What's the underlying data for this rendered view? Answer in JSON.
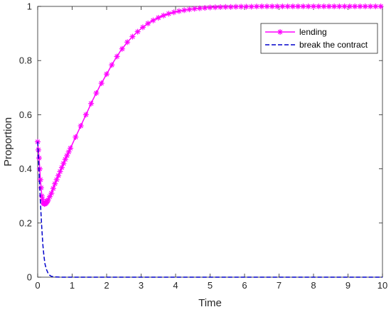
{
  "chart_data": {
    "type": "line",
    "title": "",
    "xlabel": "Time",
    "ylabel": "Proportion",
    "xlim": [
      0,
      10
    ],
    "ylim": [
      0,
      1
    ],
    "xticks": [
      "0",
      "1",
      "2",
      "3",
      "4",
      "5",
      "6",
      "7",
      "8",
      "9",
      "10"
    ],
    "yticks": [
      "0",
      "0.2",
      "0.4",
      "0.6",
      "0.8",
      "1"
    ],
    "grid": false,
    "legend_position": "top-right",
    "series": [
      {
        "name": "lending",
        "color": "#ff00ff",
        "style": "solid-with-asterisk-markers",
        "x": [
          0,
          0.04,
          0.08,
          0.12,
          0.16,
          0.2,
          0.25,
          0.3,
          0.4,
          0.5,
          0.6,
          0.7,
          0.8,
          1.0,
          1.2,
          1.4,
          1.6,
          1.8,
          2.0,
          2.2,
          2.4,
          2.6,
          2.8,
          3.0,
          3.2,
          3.4,
          3.6,
          3.8,
          4.0,
          4.2,
          4.4,
          4.6,
          4.8,
          5.0,
          5.2,
          5.4,
          5.6,
          5.8,
          6.0,
          6.2,
          6.4,
          6.6,
          6.8,
          7.0,
          7.2,
          7.4,
          7.6,
          7.8,
          8.0,
          8.2,
          8.4,
          8.6,
          8.8,
          9.0,
          9.2,
          9.4,
          9.6,
          9.8,
          10.0
        ],
        "y": [
          0.5,
          0.44,
          0.36,
          0.3,
          0.275,
          0.27,
          0.275,
          0.285,
          0.31,
          0.345,
          0.375,
          0.405,
          0.435,
          0.49,
          0.545,
          0.6,
          0.655,
          0.705,
          0.75,
          0.795,
          0.835,
          0.868,
          0.895,
          0.918,
          0.937,
          0.952,
          0.964,
          0.973,
          0.98,
          0.985,
          0.989,
          0.992,
          0.994,
          0.996,
          0.997,
          0.998,
          0.998,
          0.999,
          0.999,
          0.999,
          1.0,
          1.0,
          1.0,
          1.0,
          1.0,
          1.0,
          1.0,
          1.0,
          1.0,
          1.0,
          1.0,
          1.0,
          1.0,
          1.0,
          1.0,
          1.0,
          1.0,
          1.0,
          1.0
        ]
      },
      {
        "name": "break the contract",
        "color": "#0000cc",
        "style": "dashed",
        "x": [
          0,
          0.03,
          0.06,
          0.09,
          0.12,
          0.15,
          0.18,
          0.21,
          0.25,
          0.3,
          0.35,
          0.4,
          0.5,
          0.7,
          1.0,
          2.0,
          4.0,
          6.0,
          8.0,
          10.0
        ],
        "y": [
          0.5,
          0.42,
          0.33,
          0.25,
          0.18,
          0.12,
          0.08,
          0.05,
          0.03,
          0.015,
          0.007,
          0.003,
          0.001,
          0.0,
          0.0,
          0.0,
          0.0,
          0.0,
          0.0,
          0.0
        ]
      }
    ]
  }
}
